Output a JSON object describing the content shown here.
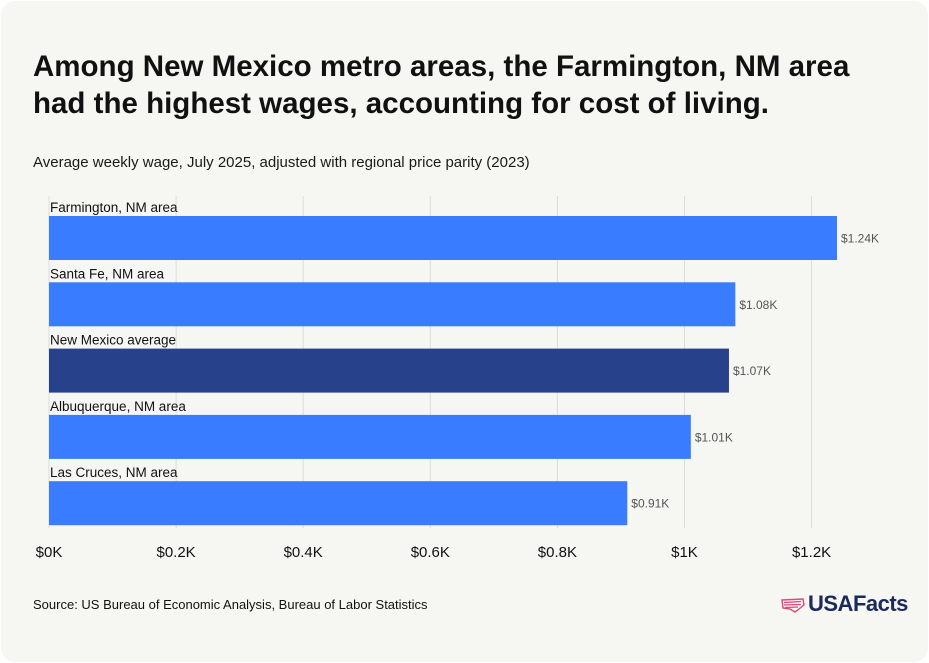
{
  "title": "Among New Mexico metro areas, the Farmington, NM area had the highest wages, accounting for cost of living.",
  "subtitle": "Average weekly wage, July 2025, adjusted with regional price parity (2023)",
  "source": "Source: US Bureau of Economic Analysis, Bureau of Labor Statistics",
  "logo": {
    "text": "USAFacts",
    "icon": "usa-flag-map-icon"
  },
  "colors": {
    "bar": "#3a7cff",
    "highlight": "#27418a",
    "grid": "#dcdcdc",
    "background": "#f6f6f3"
  },
  "chart_data": {
    "type": "bar",
    "orientation": "horizontal",
    "categories": [
      "Farmington, NM area",
      "Santa Fe, NM area",
      "New Mexico average",
      "Albuquerque, NM area",
      "Las Cruces, NM area"
    ],
    "values": [
      1240,
      1080,
      1070,
      1010,
      910
    ],
    "value_labels": [
      "$1.24K",
      "$1.08K",
      "$1.07K",
      "$1.01K",
      "$0.91K"
    ],
    "highlight": [
      false,
      false,
      true,
      false,
      false
    ],
    "xlim": [
      0,
      1240
    ],
    "xticks": [
      0,
      200,
      400,
      600,
      800,
      1000,
      1200
    ],
    "xtick_labels": [
      "$0K",
      "$0.2K",
      "$0.4K",
      "$0.6K",
      "$0.8K",
      "$1K",
      "$1.2K"
    ],
    "grid": true
  }
}
